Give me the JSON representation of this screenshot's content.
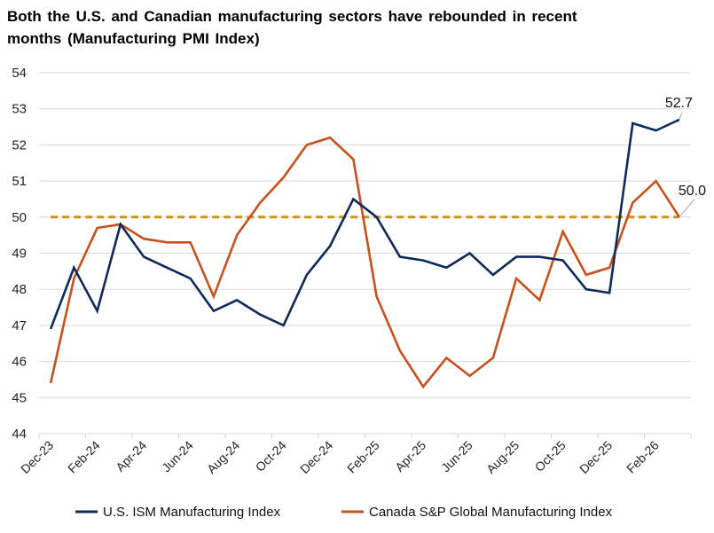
{
  "chart_data": {
    "type": "line",
    "title": "Both the U.S. and Canadian manufacturing sectors have rebounded in recent months (Manufacturing PMI Index)",
    "xlabel": "",
    "ylabel": "",
    "ylim": [
      44,
      54
    ],
    "yticks": [
      "44",
      "45",
      "46",
      "47",
      "48",
      "49",
      "50",
      "51",
      "52",
      "53",
      "54"
    ],
    "grid": true,
    "legend_position": "bottom",
    "x": [
      "Dec-23",
      "Jan-24",
      "Feb-24",
      "Mar-24",
      "Apr-24",
      "May-24",
      "Jun-24",
      "Jul-24",
      "Aug-24",
      "Sep-24",
      "Oct-24",
      "Nov-24",
      "Dec-24",
      "Jan-25",
      "Feb-25",
      "Mar-25",
      "Apr-25",
      "May-25",
      "Jun-25",
      "Jul-25",
      "Aug-25",
      "Sep-25",
      "Oct-25",
      "Nov-25",
      "Dec-25",
      "Jan-26",
      "Feb-26",
      "Mar-26"
    ],
    "xtick_labels": [
      "Dec-23",
      "Feb-24",
      "Apr-24",
      "Jun-24",
      "Aug-24",
      "Oct-24",
      "Dec-24",
      "Feb-25",
      "Apr-25",
      "Jun-25",
      "Aug-25",
      "Oct-25",
      "Dec-25",
      "Feb-26"
    ],
    "series": [
      {
        "name": "U.S. ISM Manufacturing Index",
        "color": "#0d2a5c",
        "values": [
          46.9,
          48.6,
          47.4,
          49.8,
          48.9,
          48.6,
          48.3,
          47.4,
          47.7,
          47.3,
          47.0,
          48.4,
          49.2,
          50.5,
          50.0,
          48.9,
          48.8,
          48.6,
          49.0,
          48.4,
          48.9,
          48.9,
          48.8,
          48.0,
          47.9,
          52.6,
          52.4,
          52.7
        ],
        "end_label": "52.7"
      },
      {
        "name": "Canada S&P Global Manufacturing  Index",
        "color": "#c8501c",
        "values": [
          45.4,
          48.3,
          49.7,
          49.8,
          49.4,
          49.3,
          49.3,
          47.8,
          49.5,
          50.4,
          51.1,
          52.0,
          52.2,
          51.6,
          47.8,
          46.3,
          45.3,
          46.1,
          45.6,
          46.1,
          48.3,
          47.7,
          49.6,
          48.4,
          48.6,
          50.4,
          51.0,
          50.0
        ],
        "end_label": "50.0"
      }
    ],
    "reference_line": {
      "value": 50,
      "color": "#c9961a",
      "style": "dashed"
    }
  }
}
